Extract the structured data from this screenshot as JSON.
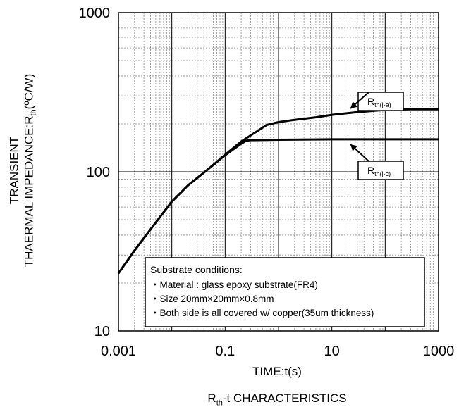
{
  "chart_data": {
    "type": "line",
    "x_scale": "log",
    "y_scale": "log",
    "xlim": [
      0.001,
      1000
    ],
    "ylim": [
      10,
      1000
    ],
    "grid": true,
    "x_ticks": [
      "0.001",
      "0.1",
      "10",
      "1000"
    ],
    "y_ticks": [
      "10",
      "100",
      "1000"
    ],
    "xlabel": "TIME:t(s)",
    "ylabel_line1": "TRANSIENT",
    "ylabel_line2_pre": "THAERMAL IMPEDANCE:R",
    "ylabel_line2_sub": "th",
    "ylabel_line2_post": "(ºC/W)",
    "caption_pre": "R",
    "caption_sub": "th",
    "caption_post": "-t CHARACTERISTICS",
    "series": [
      {
        "name_main": "R",
        "name_sub": "th(j-a)",
        "x": [
          0.001,
          0.002,
          0.005,
          0.01,
          0.02,
          0.05,
          0.1,
          0.2,
          0.4,
          0.6,
          1,
          2,
          5,
          10,
          30,
          100,
          300,
          1000
        ],
        "y": [
          23,
          32,
          48,
          65,
          82,
          105,
          128,
          155,
          180,
          197,
          205,
          212,
          220,
          228,
          237,
          245,
          247,
          247
        ]
      },
      {
        "name_main": "R",
        "name_sub": "th(j-c)",
        "x": [
          0.001,
          0.002,
          0.005,
          0.01,
          0.02,
          0.05,
          0.1,
          0.2,
          0.25,
          0.3,
          1,
          10,
          100,
          1000
        ],
        "y": [
          23,
          32,
          48,
          65,
          82,
          105,
          127,
          150,
          157,
          158,
          159,
          160,
          160,
          160
        ]
      }
    ],
    "annotation_box": {
      "title": "Substrate conditions:",
      "items": [
        "・Material : glass epoxy substrate(FR4)",
        "・Size 20mm×20mm×0.8mm",
        "・Both side is all covered w/ copper(35um thickness)"
      ]
    }
  }
}
